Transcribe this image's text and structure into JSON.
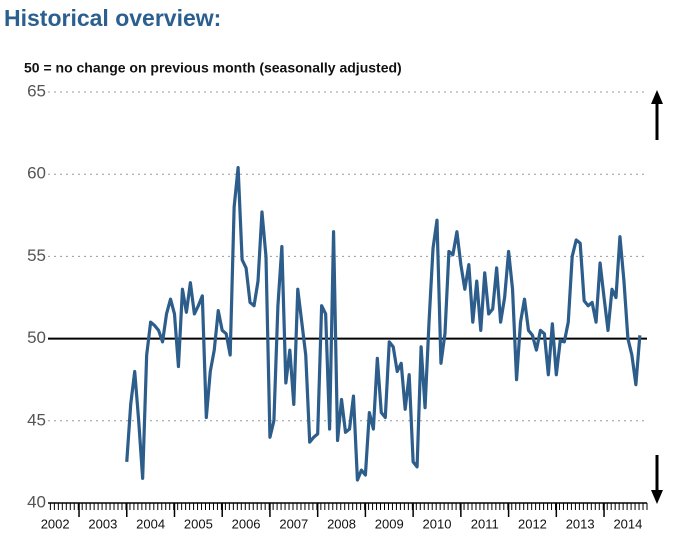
{
  "chart_data": {
    "type": "line",
    "title": "Historical overview:",
    "subtitle": "50 = no change on previous month (seasonally adjusted)",
    "x": [
      2004,
      2004.083,
      2004.167,
      2004.25,
      2004.333,
      2004.417,
      2004.5,
      2004.583,
      2004.667,
      2004.75,
      2004.833,
      2004.917,
      2005,
      2005.083,
      2005.167,
      2005.25,
      2005.333,
      2005.417,
      2005.5,
      2005.583,
      2005.667,
      2005.75,
      2005.833,
      2005.917,
      2006,
      2006.083,
      2006.167,
      2006.25,
      2006.333,
      2006.417,
      2006.5,
      2006.583,
      2006.667,
      2006.75,
      2006.833,
      2006.917,
      2007,
      2007.083,
      2007.167,
      2007.25,
      2007.333,
      2007.417,
      2007.5,
      2007.583,
      2007.667,
      2007.75,
      2007.833,
      2007.917,
      2008,
      2008.083,
      2008.167,
      2008.25,
      2008.333,
      2008.417,
      2008.5,
      2008.583,
      2008.667,
      2008.75,
      2008.833,
      2008.917,
      2009,
      2009.083,
      2009.167,
      2009.25,
      2009.333,
      2009.417,
      2009.5,
      2009.583,
      2009.667,
      2009.75,
      2009.833,
      2009.917,
      2010,
      2010.083,
      2010.167,
      2010.25,
      2010.333,
      2010.417,
      2010.5,
      2010.583,
      2010.667,
      2010.75,
      2010.833,
      2010.917,
      2011,
      2011.083,
      2011.167,
      2011.25,
      2011.333,
      2011.417,
      2011.5,
      2011.583,
      2011.667,
      2011.75,
      2011.833,
      2011.917,
      2012,
      2012.083,
      2012.167,
      2012.25,
      2012.333,
      2012.417,
      2012.5,
      2012.583,
      2012.667,
      2012.75,
      2012.833,
      2012.917,
      2013,
      2013.083,
      2013.167,
      2013.25,
      2013.333,
      2013.417,
      2013.5,
      2013.583,
      2013.667,
      2013.75,
      2013.833,
      2013.917,
      2014,
      2014.083,
      2014.167,
      2014.25,
      2014.333,
      2014.417,
      2014.5,
      2014.583,
      2014.667,
      2014.75
    ],
    "series": [
      {
        "color": "#2d5d8b",
        "values": [
          42.5,
          46,
          48,
          45,
          41.5,
          49,
          51,
          50.8,
          50.5,
          49.8,
          51.5,
          52.4,
          51.5,
          48.3,
          53,
          51.6,
          53.4,
          51.5,
          52,
          52.6,
          45.2,
          48,
          49.3,
          51.7,
          50.5,
          50.3,
          49,
          58,
          60.4,
          54.8,
          54.3,
          52.2,
          52,
          53.5,
          57.7,
          55,
          44,
          45,
          52,
          55.6,
          47.3,
          49.3,
          46,
          53,
          51,
          49,
          43.7,
          44,
          44.2,
          52,
          51.5,
          44.5,
          56.5,
          43.8,
          46.3,
          44.3,
          44.5,
          46.5,
          41.4,
          42,
          41.7,
          45.5,
          44.5,
          48.8,
          45.5,
          45.2,
          49.8,
          49.5,
          48,
          48.5,
          45.7,
          47.8,
          42.5,
          42.2,
          49.5,
          45.8,
          51,
          55.5,
          57.2,
          48.5,
          50.3,
          55.3,
          55.1,
          56.5,
          54.5,
          53,
          54.5,
          51,
          53.5,
          50.5,
          54,
          51.5,
          51.8,
          54.3,
          51,
          52.5,
          55.3,
          53,
          47.5,
          51,
          52.4,
          50.5,
          50.2,
          49.3,
          50.5,
          50.3,
          47.8,
          50.9,
          47.8,
          49.9,
          49.8,
          51,
          55,
          56,
          55.8,
          52.3,
          52,
          52.2,
          51,
          54.6,
          52.5,
          50.5,
          53,
          52.5,
          56.2,
          53.5,
          50,
          49,
          47.2,
          50.2
        ]
      }
    ],
    "xlim": [
      2002.35,
      2014.9
    ],
    "xticks": [
      2002,
      2003,
      2004,
      2005,
      2006,
      2007,
      2008,
      2009,
      2010,
      2011,
      2012,
      2013,
      2014
    ],
    "ylim": [
      40,
      65
    ],
    "yticks": [
      40,
      45,
      50,
      55,
      60,
      65
    ],
    "reference_line": 50,
    "grid": true
  }
}
